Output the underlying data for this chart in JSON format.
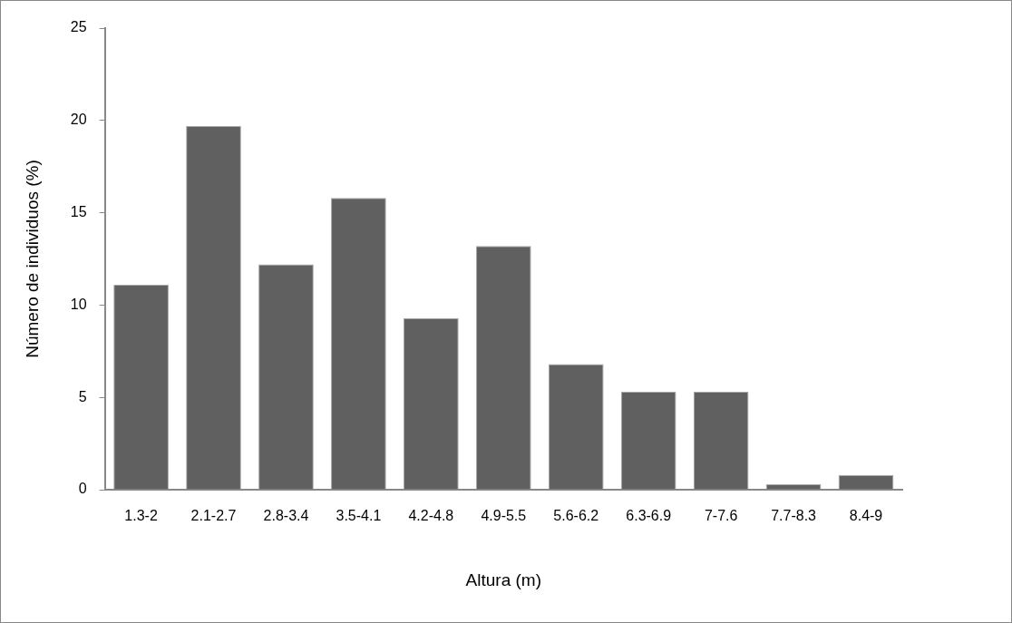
{
  "chart_data": {
    "type": "bar",
    "xlabel": "Altura (m)",
    "ylabel": "Número de individuos (%)",
    "categories": [
      "1.3-2",
      "2.1-2.7",
      "2.8-3.4",
      "3.5-4.1",
      "4.2-4.8",
      "4.9-5.5",
      "5.6-6.2",
      "6.3-6.9",
      "7-7.6",
      "7.7-8.3",
      "8.4-9"
    ],
    "values": [
      11.1,
      19.7,
      12.2,
      15.8,
      9.3,
      13.2,
      6.8,
      5.3,
      5.3,
      0.3,
      0.8
    ],
    "color": "#606060",
    "ylim": [
      0,
      25
    ],
    "yticks": [
      0,
      5,
      10,
      15,
      20,
      25
    ],
    "grid": false,
    "legend": false
  }
}
